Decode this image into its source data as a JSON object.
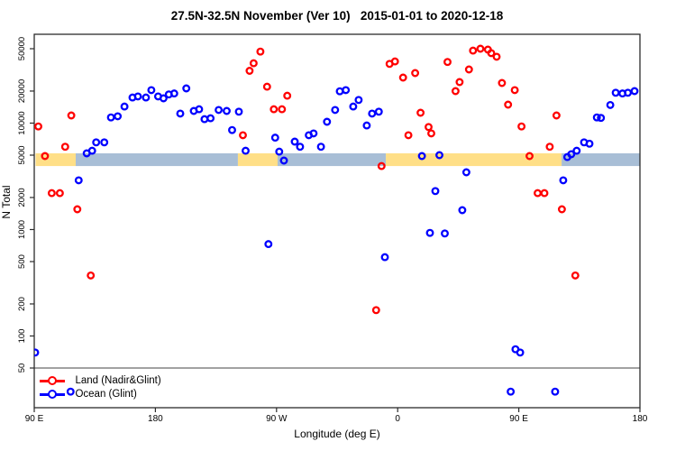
{
  "title": "27.5N-32.5N November (Ver 10)   2015-01-01 to 2020-12-18",
  "chart_data": {
    "type": "scatter",
    "title": "27.5N-32.5N November (Ver 10)   2015-01-01 to 2020-12-18",
    "xlabel": "Longitude (deg E)",
    "ylabel": "N Total",
    "x_axis": {
      "note": "longitude unwrapped eastward from 90E; axis units deg",
      "range": [
        90,
        540
      ],
      "ticks": [
        90,
        180,
        270,
        360,
        450,
        540
      ],
      "tick_labels": [
        "90 E",
        "180",
        "90 W",
        "0",
        "90 E",
        "180"
      ]
    },
    "y_axis": {
      "scale": "log10",
      "range": [
        25,
        62000
      ],
      "ticks": [
        50,
        100,
        200,
        500,
        1000,
        2000,
        5000,
        10000,
        20000,
        50000
      ],
      "tick_labels": [
        "50",
        "100",
        "200",
        "500",
        "1000",
        "2000",
        "5000",
        "10000",
        "20000",
        "50000"
      ]
    },
    "gridline_y": 50,
    "bands": {
      "y_range": [
        3950,
        5200
      ],
      "segments": [
        {
          "surface": "land",
          "from": 91,
          "to": 120.8
        },
        {
          "surface": "ocean",
          "from": 120.8,
          "to": 241.3
        },
        {
          "surface": "land",
          "from": 241.3,
          "to": 270.8
        },
        {
          "surface": "ocean",
          "from": 270.8,
          "to": 351.2
        },
        {
          "surface": "land",
          "from": 351.2,
          "to": 481.8
        },
        {
          "surface": "ocean",
          "from": 481.8,
          "to": 540
        }
      ]
    },
    "series": [
      {
        "name": "Land (Nadir&Glint)",
        "color": "#FF0000",
        "points": [
          [
            93,
            9300
          ],
          [
            117.5,
            11800
          ],
          [
            98,
            4900
          ],
          [
            113,
            6000
          ],
          [
            103,
            2200
          ],
          [
            109,
            2200
          ],
          [
            122,
            1550
          ],
          [
            132,
            370
          ],
          [
            245,
            7700
          ],
          [
            250,
            31000
          ],
          [
            253,
            36500
          ],
          [
            258,
            47000
          ],
          [
            263,
            22000
          ],
          [
            268,
            13500
          ],
          [
            274,
            13500
          ],
          [
            278,
            18100
          ],
          [
            344,
            175
          ],
          [
            348,
            3950
          ],
          [
            354,
            36000
          ],
          [
            358,
            38000
          ],
          [
            364,
            26800
          ],
          [
            368,
            7700
          ],
          [
            373,
            29500
          ],
          [
            377,
            12500
          ],
          [
            383,
            9200
          ],
          [
            385,
            8000
          ],
          [
            397,
            37500
          ],
          [
            403,
            20000
          ],
          [
            406,
            24300
          ],
          [
            413,
            31900
          ],
          [
            416,
            48000
          ],
          [
            421.5,
            50000
          ],
          [
            427,
            49000
          ],
          [
            429.5,
            45400
          ],
          [
            433.5,
            42000
          ],
          [
            437.5,
            23800
          ],
          [
            442,
            14900
          ],
          [
            447,
            20400
          ],
          [
            452,
            9300
          ],
          [
            458,
            4900
          ],
          [
            464,
            2200
          ],
          [
            469,
            2200
          ],
          [
            473,
            6000
          ],
          [
            478,
            11800
          ],
          [
            482,
            1550
          ],
          [
            492,
            370
          ]
        ]
      },
      {
        "name": "Ocean (Glint)",
        "color": "#0000FF",
        "points": [
          [
            90.7,
            70
          ],
          [
            117,
            30
          ],
          [
            123,
            2900
          ],
          [
            129,
            5200
          ],
          [
            133,
            5500
          ],
          [
            136,
            6600
          ],
          [
            142,
            6600
          ],
          [
            147,
            11300
          ],
          [
            152,
            11600
          ],
          [
            157,
            14300
          ],
          [
            163,
            17400
          ],
          [
            167,
            17800
          ],
          [
            173,
            17400
          ],
          [
            177,
            20400
          ],
          [
            182,
            17800
          ],
          [
            186,
            17100
          ],
          [
            190,
            18600
          ],
          [
            194,
            19000
          ],
          [
            198.5,
            12300
          ],
          [
            203,
            21200
          ],
          [
            208.5,
            13000
          ],
          [
            212.5,
            13500
          ],
          [
            216.5,
            10900
          ],
          [
            221,
            11100
          ],
          [
            227,
            13300
          ],
          [
            233,
            13000
          ],
          [
            237,
            8600
          ],
          [
            242,
            12800
          ],
          [
            247,
            5500
          ],
          [
            264,
            730
          ],
          [
            269,
            7300
          ],
          [
            272,
            5400
          ],
          [
            275.5,
            4450
          ],
          [
            283.5,
            6700
          ],
          [
            287.5,
            6000
          ],
          [
            294,
            7700
          ],
          [
            297.5,
            8000
          ],
          [
            303,
            6000
          ],
          [
            307.5,
            10300
          ],
          [
            313.5,
            13300
          ],
          [
            317,
            19900
          ],
          [
            321.5,
            20400
          ],
          [
            327,
            14300
          ],
          [
            331,
            16500
          ],
          [
            337,
            9500
          ],
          [
            341,
            12300
          ],
          [
            346,
            12800
          ],
          [
            350.5,
            550
          ],
          [
            378,
            4900
          ],
          [
            384,
            930
          ],
          [
            388,
            2300
          ],
          [
            391,
            5000
          ],
          [
            395,
            920
          ],
          [
            408,
            1520
          ],
          [
            411,
            3450
          ],
          [
            444,
            30
          ],
          [
            447.5,
            75
          ],
          [
            451,
            70
          ],
          [
            477,
            30
          ],
          [
            483,
            2900
          ],
          [
            486,
            4800
          ],
          [
            489,
            5100
          ],
          [
            493,
            5500
          ],
          [
            498.5,
            6600
          ],
          [
            502.5,
            6400
          ],
          [
            508,
            11300
          ],
          [
            511,
            11200
          ],
          [
            518,
            14800
          ],
          [
            522,
            19300
          ],
          [
            527,
            19000
          ],
          [
            531,
            19300
          ],
          [
            536,
            20000
          ]
        ]
      }
    ],
    "colors": {
      "land_points": "#FF0000",
      "ocean_points": "#0000FF",
      "band_land": "#FFDF87",
      "band_ocean": "#A8BED6",
      "gridline": "#848484",
      "axis_box": "#2b2b2b"
    },
    "legend_position": "bottom-left",
    "grid": "off"
  }
}
